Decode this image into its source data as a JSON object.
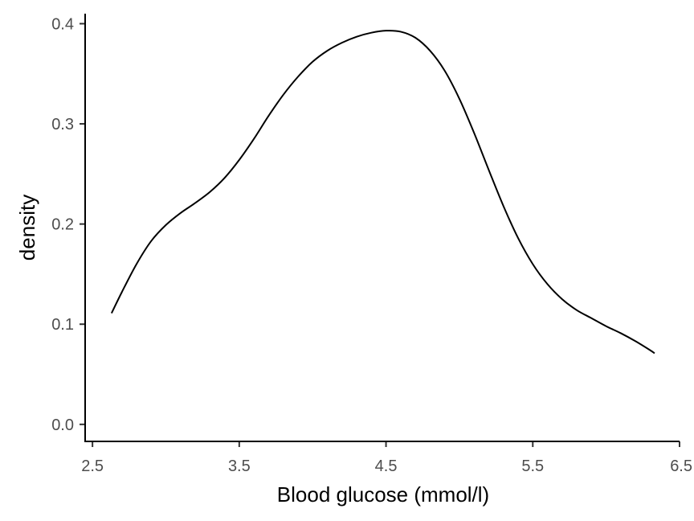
{
  "chart_data": {
    "type": "line",
    "title": "",
    "xlabel": "Blood glucose (mmol/l)",
    "ylabel": "density",
    "xlim": [
      2.45,
      6.5
    ],
    "ylim": [
      -0.017,
      0.41
    ],
    "grid": false,
    "legend": "none",
    "x_ticks": [
      {
        "value": 2.5,
        "label": "2.5"
      },
      {
        "value": 3.5,
        "label": "3.5"
      },
      {
        "value": 4.5,
        "label": "4.5"
      },
      {
        "value": 5.5,
        "label": "5.5"
      },
      {
        "value": 6.5,
        "label": "6.5"
      }
    ],
    "y_ticks": [
      {
        "value": 0.0,
        "label": "0.0"
      },
      {
        "value": 0.1,
        "label": "0.1"
      },
      {
        "value": 0.2,
        "label": "0.2"
      },
      {
        "value": 0.3,
        "label": "0.3"
      },
      {
        "value": 0.4,
        "label": "0.4"
      }
    ],
    "line_color": "#000000",
    "series": [
      {
        "x": [
          2.63,
          2.7,
          2.8,
          2.9,
          3.0,
          3.1,
          3.2,
          3.3,
          3.4,
          3.5,
          3.6,
          3.7,
          3.8,
          3.9,
          4.0,
          4.1,
          4.2,
          4.3,
          4.4,
          4.5,
          4.6,
          4.7,
          4.8,
          4.9,
          5.0,
          5.1,
          5.2,
          5.3,
          5.4,
          5.5,
          5.6,
          5.7,
          5.8,
          5.9,
          6.0,
          6.1,
          6.2,
          6.3,
          6.33
        ],
        "y": [
          0.111,
          0.132,
          0.16,
          0.183,
          0.199,
          0.211,
          0.221,
          0.232,
          0.246,
          0.264,
          0.285,
          0.308,
          0.329,
          0.347,
          0.362,
          0.373,
          0.381,
          0.387,
          0.391,
          0.393,
          0.392,
          0.386,
          0.373,
          0.353,
          0.325,
          0.291,
          0.254,
          0.218,
          0.186,
          0.16,
          0.14,
          0.125,
          0.114,
          0.106,
          0.098,
          0.091,
          0.083,
          0.074,
          0.071
        ]
      }
    ]
  }
}
